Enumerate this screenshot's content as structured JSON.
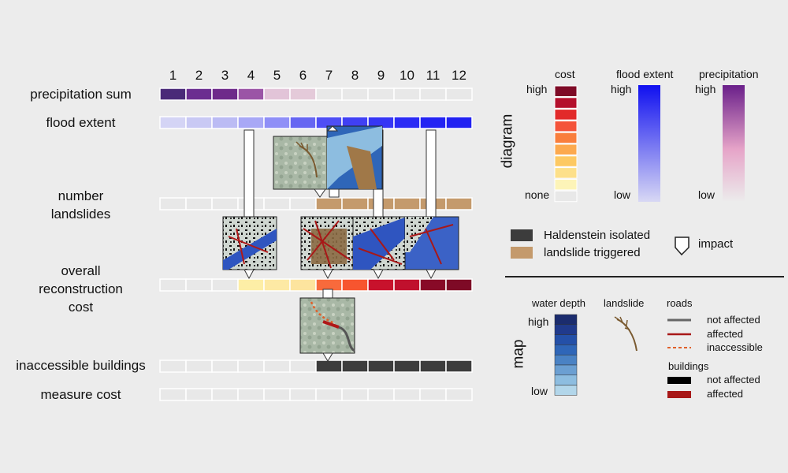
{
  "columns": [
    "1",
    "2",
    "3",
    "4",
    "5",
    "6",
    "7",
    "8",
    "9",
    "10",
    "11",
    "12"
  ],
  "rows": [
    {
      "label": "precipitation sum",
      "values": [
        "#4a2a78",
        "#6b2e90",
        "#6e2a8a",
        "#9b55a6",
        "#e2c4d8",
        "#e4cad9",
        "#e8e8e8",
        "#e8e8e8",
        "#e8e8e8",
        "#e8e8e8",
        "#e8e8e8",
        "#e8e8e8"
      ]
    },
    {
      "label": "flood extent",
      "values": [
        "#d4d4f5",
        "#c9c9f4",
        "#bbbbf4",
        "#a8a8f6",
        "#8f8ff7",
        "#6666f2",
        "#4e4ef5",
        "#4040f4",
        "#3636f5",
        "#2b2bf5",
        "#2424f3",
        "#2222f2"
      ]
    },
    {
      "label": "number\nlandslides",
      "values": [
        "#e8e8e8",
        "#e8e8e8",
        "#e8e8e8",
        "#e8e8e8",
        "#e8e8e8",
        "#e8e8e8",
        "#c49a6c",
        "#c49a6c",
        "#c49a6c",
        "#c49a6c",
        "#c49a6c",
        "#c49a6c"
      ]
    },
    {
      "label": "overall\nreconstruction\ncost",
      "values": [
        "#e8e8e8",
        "#e8e8e8",
        "#e8e8e8",
        "#fdeea6",
        "#fde9a4",
        "#fde49e",
        "#f86a3c",
        "#f7552f",
        "#c8122c",
        "#c0102d",
        "#880a27",
        "#7e0a26"
      ]
    },
    {
      "label": "inaccessible buildings",
      "values": [
        "#e8e8e8",
        "#e8e8e8",
        "#e8e8e8",
        "#e8e8e8",
        "#e8e8e8",
        "#e8e8e8",
        "#3c3c3c",
        "#3c3c3c",
        "#3c3c3c",
        "#3c3c3c",
        "#3c3c3c",
        "#3c3c3c"
      ]
    },
    {
      "label": "measure cost",
      "values": [
        "#e8e8e8",
        "#e8e8e8",
        "#e8e8e8",
        "#e8e8e8",
        "#e8e8e8",
        "#e8e8e8",
        "#e8e8e8",
        "#e8e8e8",
        "#e8e8e8",
        "#e8e8e8",
        "#e8e8e8",
        "#e8e8e8"
      ]
    }
  ],
  "legend_diagram": {
    "section_title": "diagram",
    "cost": {
      "title": "cost",
      "high": "high",
      "none": "none",
      "colors": [
        "#7e0a26",
        "#b40f2c",
        "#e22a2a",
        "#f4533a",
        "#f97e3c",
        "#fca94e",
        "#fdc963",
        "#fde08a",
        "#fdf4b8",
        "#e8e8e8"
      ]
    },
    "flood": {
      "title": "flood extent",
      "high": "high",
      "low": "low",
      "top": "#1010f0",
      "bottom": "#d8d8f4"
    },
    "precip": {
      "title": "precipitation",
      "high": "high",
      "low": "low",
      "top": "#6a1f8a",
      "mid": "#e6a4c8",
      "bottom": "#ececec"
    }
  },
  "legend_status": {
    "isolated": {
      "label": "Haldenstein isolated",
      "color": "#3c3c3c"
    },
    "landslide": {
      "label": "landslide triggered",
      "color": "#c49a6c"
    },
    "impact": {
      "label": "impact"
    }
  },
  "legend_map": {
    "section_title": "map",
    "water": {
      "title": "water depth",
      "high": "high",
      "low": "low",
      "colors": [
        "#1b2c6e",
        "#203a8c",
        "#2450a8",
        "#2f66b8",
        "#4a82c4",
        "#6b9fd2",
        "#8dbde0",
        "#b2d6ea"
      ]
    },
    "landslide": {
      "title": "landslide"
    },
    "roads": {
      "title": "roads",
      "not_affected": "not affected",
      "affected": "affected",
      "inaccessible": "inaccessible"
    },
    "buildings": {
      "title": "buildings",
      "not_affected": "not affected",
      "affected": "affected"
    }
  }
}
